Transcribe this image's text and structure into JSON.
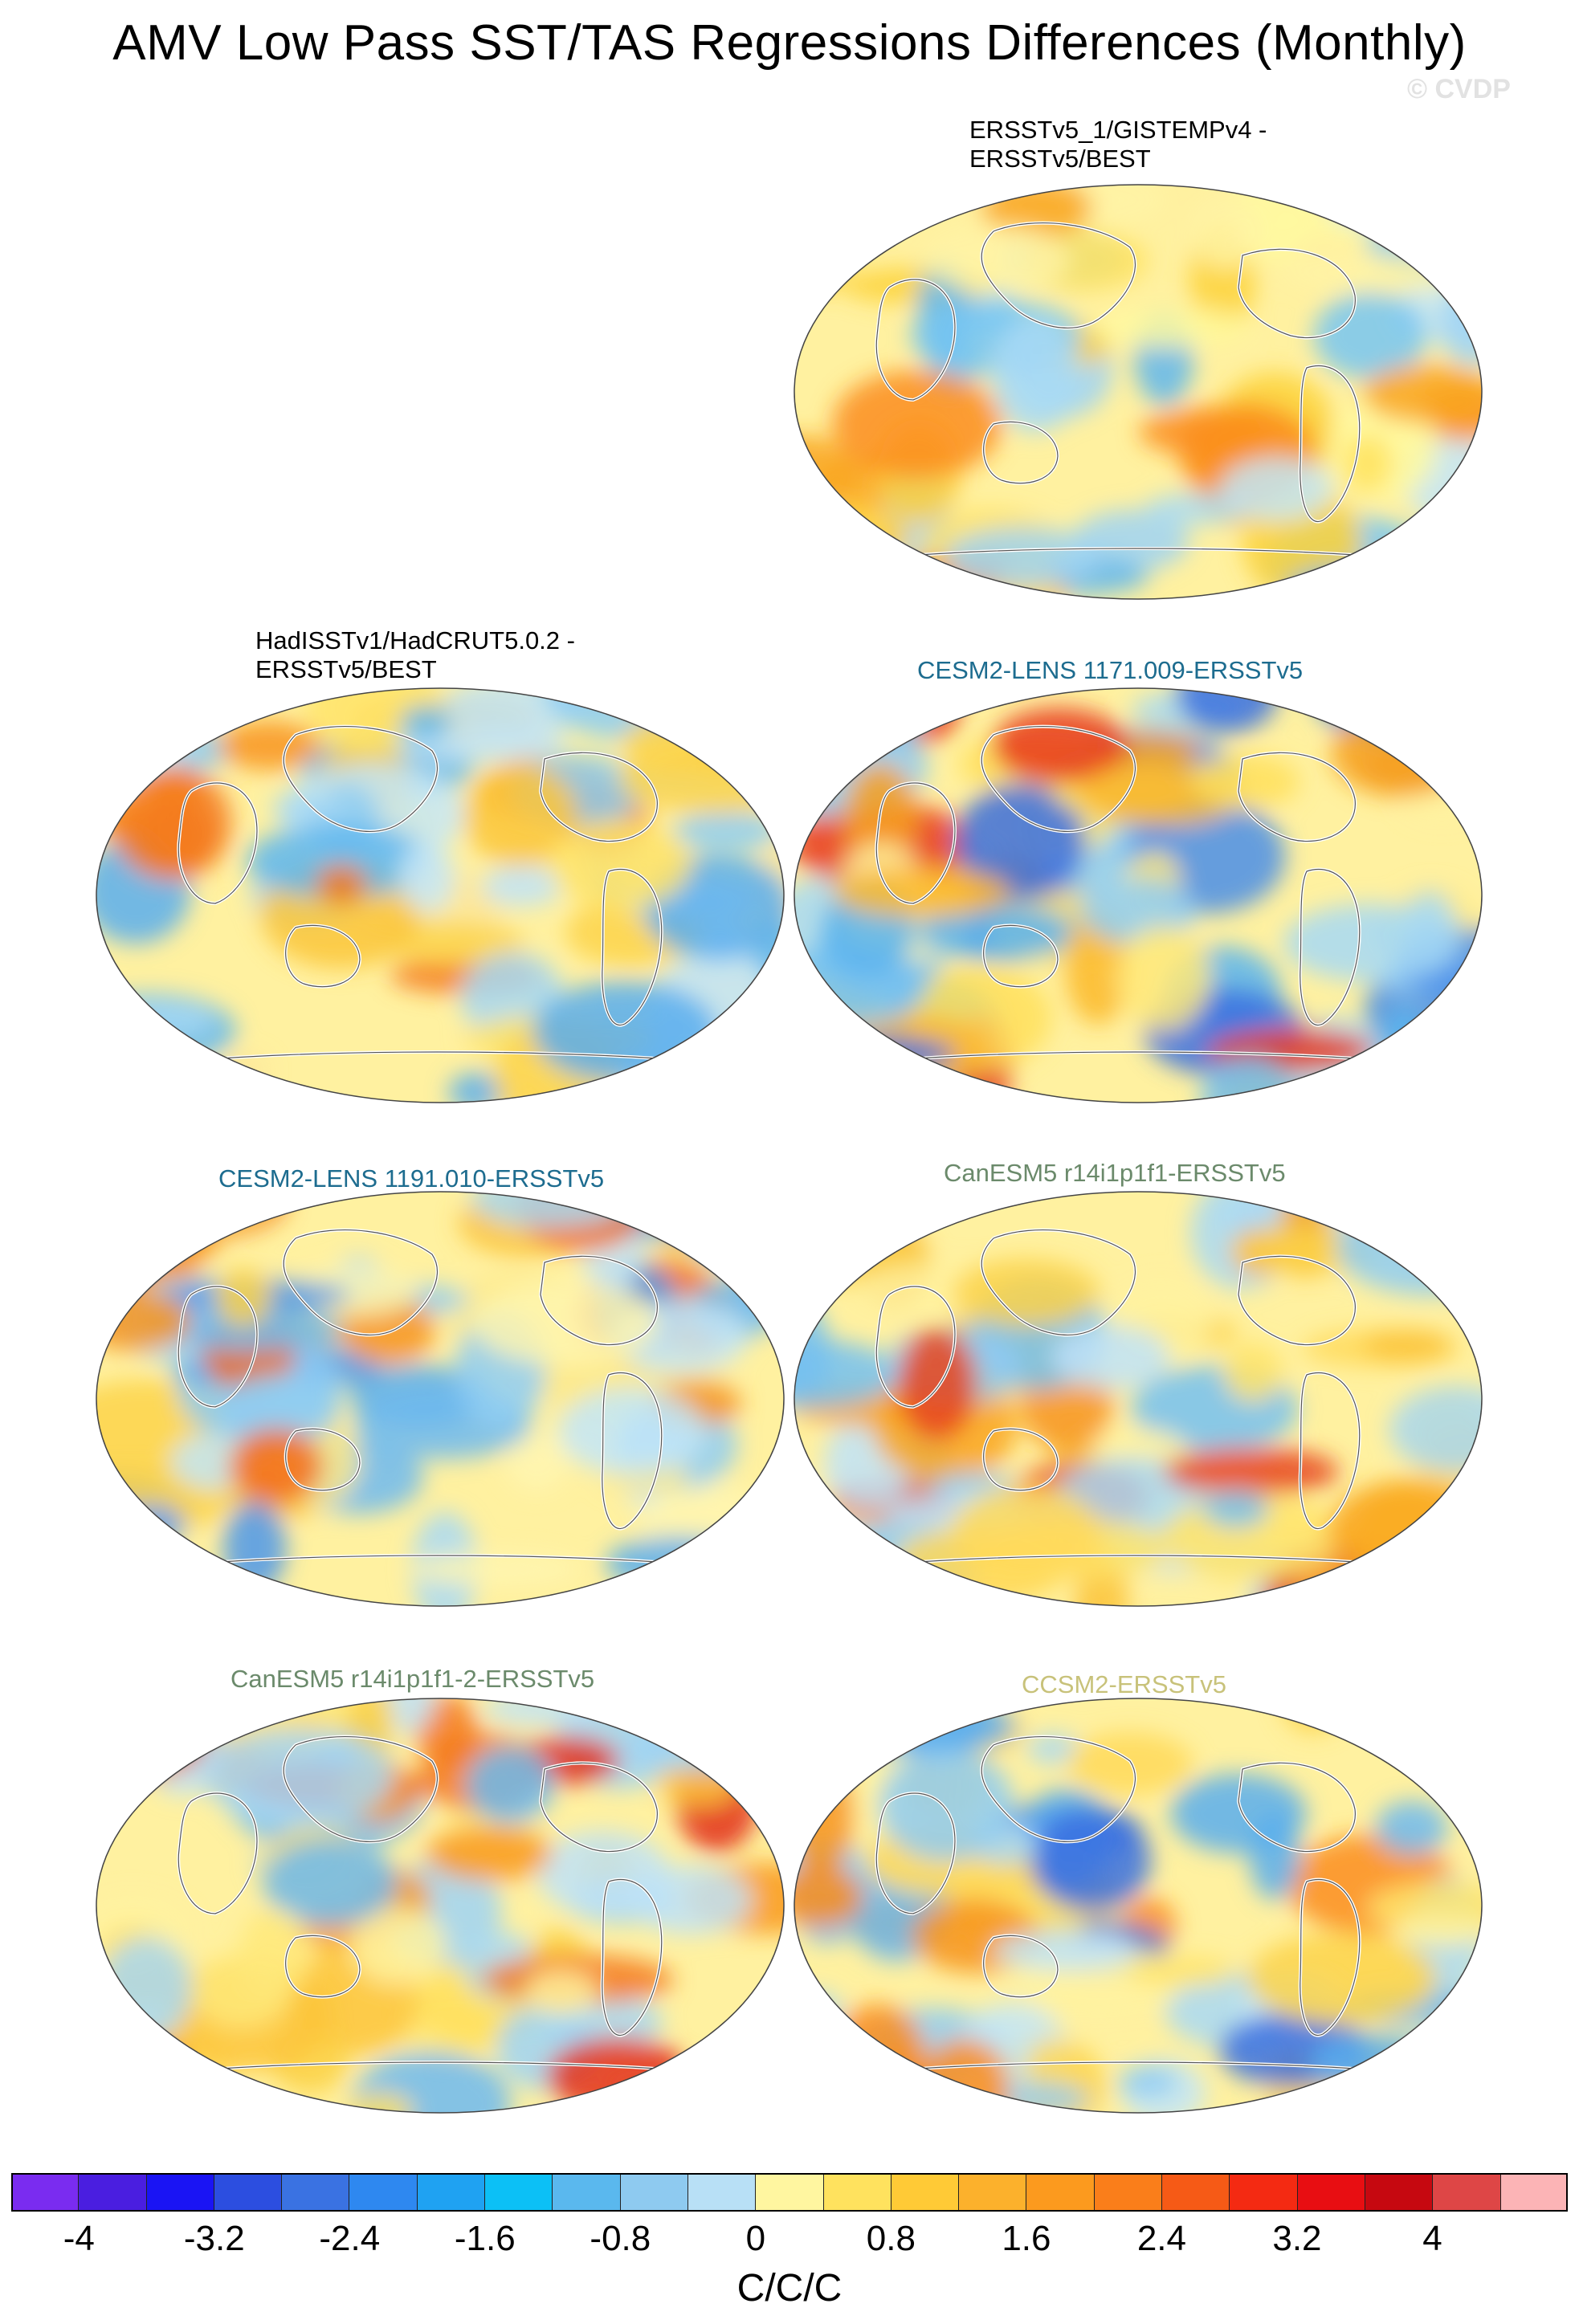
{
  "figure": {
    "title": "AMV Low Pass SST/TAS Regressions Differences (Monthly)",
    "credit": "© CVDP"
  },
  "panels": [
    {
      "id": "p1",
      "lines": [
        "ERSSTv5_1/GISTEMPv4 -",
        "ERSSTv5/BEST"
      ],
      "color": "#000000",
      "pattern": [
        "#fff9a0",
        "#77c6f2",
        "#fdd23a",
        "#a9dbf6",
        "#f9a41c",
        "#c3e6f8",
        "#ffe25e",
        "#5fb6ef",
        "#fff3a6",
        "#fb8d1c",
        "#9fd4f4",
        "#ffcf3a"
      ]
    },
    {
      "id": "p2",
      "lines": [
        "HadISSTv1/HadCRUT5.0.2 -",
        "ERSSTv5/BEST"
      ],
      "color": "#000000",
      "pattern": [
        "#8cccf3",
        "#fde69a",
        "#5aaeee",
        "#fcc63a",
        "#bfe3f8",
        "#f89422",
        "#a6d8f5",
        "#ffe46a",
        "#5fb7ef",
        "#fdd44a",
        "#c7e7f8",
        "#f47a1c"
      ]
    },
    {
      "id": "p3",
      "lines": [
        "CESM2-LENS 1171.009-ERSSTv5"
      ],
      "color": "#1d6c8f",
      "pattern": [
        "#4a8ee8",
        "#fff2a0",
        "#8fcdf3",
        "#f7a020",
        "#5ab4ee",
        "#ffdf5c",
        "#a7d9f5",
        "#e83a1c",
        "#74c1f1",
        "#ffe97a",
        "#3b70e0",
        "#fcb82c"
      ]
    },
    {
      "id": "p4",
      "lines": [
        "CESM2-LENS 1191.010-ERSSTv5"
      ],
      "color": "#1d6c8f",
      "pattern": [
        "#6fbaf0",
        "#fde98a",
        "#4d97ea",
        "#fcc33a",
        "#a9d9f5",
        "#f79420",
        "#8fcdf3",
        "#fff6b0",
        "#5aaeee",
        "#fdd44a",
        "#c3e6f8",
        "#f36c1a"
      ]
    },
    {
      "id": "p5",
      "lines": [
        "CanESM5 r14i1p1f1-ERSSTv5"
      ],
      "color": "#6b8a6b",
      "pattern": [
        "#fcc33a",
        "#a9d9f5",
        "#f7941c",
        "#ffe46a",
        "#e8441c",
        "#bfe3f8",
        "#fdd44a",
        "#74c1f1",
        "#fff2a0",
        "#f9a41c",
        "#8fcdf3",
        "#ffd95a"
      ]
    },
    {
      "id": "p6",
      "lines": [
        "CanESM5 r14i1p1f1-2-ERSSTv5"
      ],
      "color": "#6b8a6b",
      "pattern": [
        "#fcd043",
        "#9fd4f4",
        "#f47a1c",
        "#fff2a0",
        "#e32f1a",
        "#bfe3f8",
        "#fdc43a",
        "#6fbaf0",
        "#ffe97a",
        "#f99a20",
        "#a9d9f5",
        "#ffdf5c"
      ]
    },
    {
      "id": "p7",
      "lines": [
        "CCSM2-ERSSTv5"
      ],
      "color": "#c8c27a",
      "pattern": [
        "#6fbaf0",
        "#fdd44a",
        "#3b70e0",
        "#fff2a0",
        "#a9d9f5",
        "#f7941c",
        "#5aaeee",
        "#ffe46a",
        "#c3e6f8",
        "#fb8d1c",
        "#8fcdf3",
        "#ffd95a"
      ]
    }
  ],
  "colorbar": {
    "colors": [
      "#7a2cf0",
      "#4a1ee0",
      "#1a14f4",
      "#2c4ee0",
      "#3a72e2",
      "#2e88f0",
      "#1fa2f2",
      "#0cc0f6",
      "#5ab8ee",
      "#8ecaf0",
      "#b8e0f6",
      "#fff6a0",
      "#ffe25e",
      "#ffca36",
      "#fcb12c",
      "#fc9a1e",
      "#fa7e1a",
      "#f65a16",
      "#f42a12",
      "#e80e12",
      "#c60810",
      "#de4646",
      "#fcb4b6"
    ],
    "tick_labels": [
      "-4",
      "-3.2",
      "-2.4",
      "-1.6",
      "-0.8",
      "0",
      "0.8",
      "1.6",
      "2.4",
      "3.2",
      "4"
    ],
    "units": "C/C/C"
  }
}
